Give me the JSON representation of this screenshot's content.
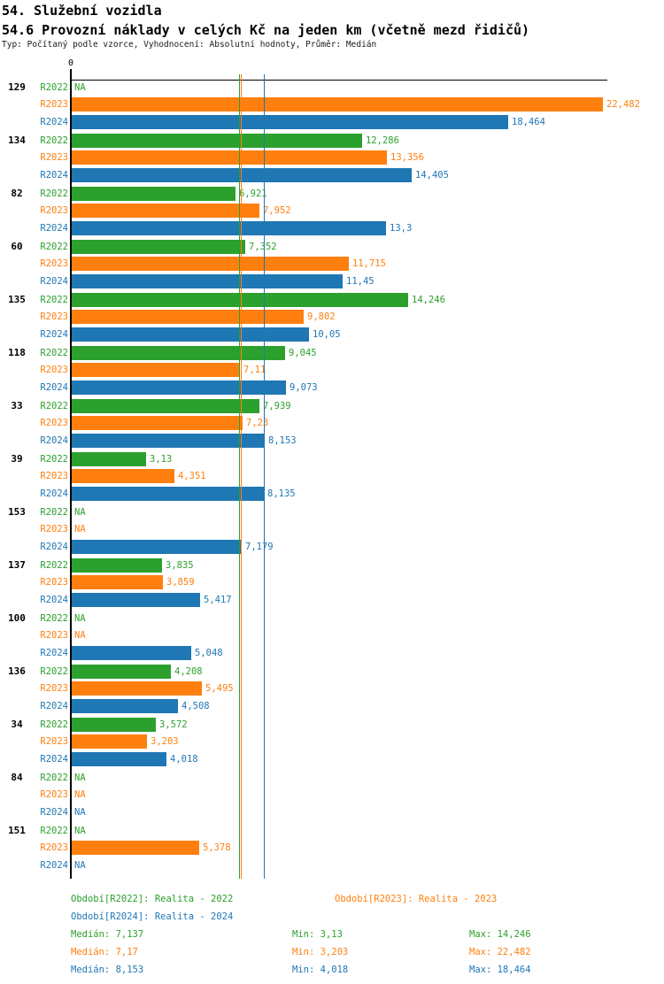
{
  "header": {
    "title1": "54. Služební vozidla",
    "title2": "54.6 Provozní náklady v celých Kč na jeden km (včetně mezd řidičů)",
    "meta": "Typ: Počítaný podle vzorce, Vyhodnocení: Absolutní hodnoty, Průměr: Medián"
  },
  "axis": {
    "zero_label": "0"
  },
  "chart_data": {
    "type": "bar",
    "orientation": "horizontal",
    "title": "54.6 Provozní náklady v celých Kč na jeden km (včetně mezd řidičů)",
    "xlim": [
      0,
      22.482
    ],
    "grid": false,
    "na_label": "NA",
    "series_colors": {
      "R2022": "#2ca02c",
      "R2023": "#ff7f0e",
      "R2024": "#1f77b4"
    },
    "categories": [
      "129",
      "134",
      "82",
      "60",
      "135",
      "118",
      "33",
      "39",
      "153",
      "137",
      "100",
      "136",
      "34",
      "84",
      "151"
    ],
    "series": [
      {
        "name": "R2022",
        "color": "#2ca02c",
        "values": [
          null,
          12.286,
          6.921,
          7.352,
          14.246,
          9.045,
          7.939,
          3.13,
          null,
          3.835,
          null,
          4.208,
          3.572,
          null,
          null
        ]
      },
      {
        "name": "R2023",
        "color": "#ff7f0e",
        "values": [
          22.482,
          13.356,
          7.952,
          11.715,
          9.802,
          7.11,
          7.23,
          4.351,
          null,
          3.859,
          null,
          5.495,
          3.203,
          null,
          5.378
        ]
      },
      {
        "name": "R2024",
        "color": "#1f77b4",
        "values": [
          18.464,
          14.405,
          13.3,
          11.45,
          10.05,
          9.073,
          8.153,
          8.135,
          7.179,
          5.417,
          5.048,
          4.508,
          4.018,
          null,
          null
        ]
      }
    ],
    "groups": [
      {
        "id": "129",
        "bars": [
          {
            "series": "R2022",
            "value": null,
            "label": "NA"
          },
          {
            "series": "R2023",
            "value": 22.482,
            "label": "22,482"
          },
          {
            "series": "R2024",
            "value": 18.464,
            "label": "18,464"
          }
        ]
      },
      {
        "id": "134",
        "bars": [
          {
            "series": "R2022",
            "value": 12.286,
            "label": "12,286"
          },
          {
            "series": "R2023",
            "value": 13.356,
            "label": "13,356"
          },
          {
            "series": "R2024",
            "value": 14.405,
            "label": "14,405"
          }
        ]
      },
      {
        "id": "82",
        "bars": [
          {
            "series": "R2022",
            "value": 6.921,
            "label": "6,921"
          },
          {
            "series": "R2023",
            "value": 7.952,
            "label": "7,952"
          },
          {
            "series": "R2024",
            "value": 13.3,
            "label": "13,3"
          }
        ]
      },
      {
        "id": "60",
        "bars": [
          {
            "series": "R2022",
            "value": 7.352,
            "label": "7,352"
          },
          {
            "series": "R2023",
            "value": 11.715,
            "label": "11,715"
          },
          {
            "series": "R2024",
            "value": 11.45,
            "label": "11,45"
          }
        ]
      },
      {
        "id": "135",
        "bars": [
          {
            "series": "R2022",
            "value": 14.246,
            "label": "14,246"
          },
          {
            "series": "R2023",
            "value": 9.802,
            "label": "9,802"
          },
          {
            "series": "R2024",
            "value": 10.05,
            "label": "10,05"
          }
        ]
      },
      {
        "id": "118",
        "bars": [
          {
            "series": "R2022",
            "value": 9.045,
            "label": "9,045"
          },
          {
            "series": "R2023",
            "value": 7.11,
            "label": "7,11"
          },
          {
            "series": "R2024",
            "value": 9.073,
            "label": "9,073"
          }
        ]
      },
      {
        "id": "33",
        "bars": [
          {
            "series": "R2022",
            "value": 7.939,
            "label": "7,939"
          },
          {
            "series": "R2023",
            "value": 7.23,
            "label": "7,23"
          },
          {
            "series": "R2024",
            "value": 8.153,
            "label": "8,153"
          }
        ]
      },
      {
        "id": "39",
        "bars": [
          {
            "series": "R2022",
            "value": 3.13,
            "label": "3,13"
          },
          {
            "series": "R2023",
            "value": 4.351,
            "label": "4,351"
          },
          {
            "series": "R2024",
            "value": 8.135,
            "label": "8,135"
          }
        ]
      },
      {
        "id": "153",
        "bars": [
          {
            "series": "R2022",
            "value": null,
            "label": "NA"
          },
          {
            "series": "R2023",
            "value": null,
            "label": "NA"
          },
          {
            "series": "R2024",
            "value": 7.179,
            "label": "7,179"
          }
        ]
      },
      {
        "id": "137",
        "bars": [
          {
            "series": "R2022",
            "value": 3.835,
            "label": "3,835"
          },
          {
            "series": "R2023",
            "value": 3.859,
            "label": "3,859"
          },
          {
            "series": "R2024",
            "value": 5.417,
            "label": "5,417"
          }
        ]
      },
      {
        "id": "100",
        "bars": [
          {
            "series": "R2022",
            "value": null,
            "label": "NA"
          },
          {
            "series": "R2023",
            "value": null,
            "label": "NA"
          },
          {
            "series": "R2024",
            "value": 5.048,
            "label": "5,048"
          }
        ]
      },
      {
        "id": "136",
        "bars": [
          {
            "series": "R2022",
            "value": 4.208,
            "label": "4,208"
          },
          {
            "series": "R2023",
            "value": 5.495,
            "label": "5,495"
          },
          {
            "series": "R2024",
            "value": 4.508,
            "label": "4,508"
          }
        ]
      },
      {
        "id": "34",
        "bars": [
          {
            "series": "R2022",
            "value": 3.572,
            "label": "3,572"
          },
          {
            "series": "R2023",
            "value": 3.203,
            "label": "3,203"
          },
          {
            "series": "R2024",
            "value": 4.018,
            "label": "4,018"
          }
        ]
      },
      {
        "id": "84",
        "bars": [
          {
            "series": "R2022",
            "value": null,
            "label": "NA"
          },
          {
            "series": "R2023",
            "value": null,
            "label": "NA"
          },
          {
            "series": "R2024",
            "value": null,
            "label": "NA"
          }
        ]
      },
      {
        "id": "151",
        "bars": [
          {
            "series": "R2022",
            "value": null,
            "label": "NA"
          },
          {
            "series": "R2023",
            "value": 5.378,
            "label": "5,378"
          },
          {
            "series": "R2024",
            "value": null,
            "label": "NA"
          }
        ]
      }
    ],
    "reference_lines": [
      {
        "series": "R2022",
        "value": 7.137,
        "color": "#2ca02c"
      },
      {
        "series": "R2023",
        "value": 7.17,
        "color": "#ff7f0e"
      },
      {
        "series": "R2024",
        "value": 8.153,
        "color": "#1f77b4"
      }
    ]
  },
  "legend": {
    "items": [
      {
        "label": "Období[R2022]: Realita - 2022",
        "color": "#2ca02c",
        "row": 0,
        "col": 0
      },
      {
        "label": "Období[R2023]: Realita - 2023",
        "color": "#ff7f0e",
        "row": 0,
        "col": 1
      },
      {
        "label": "Období[R2024]: Realita - 2024",
        "color": "#1f77b4",
        "row": 1,
        "col": 0
      }
    ],
    "stats": [
      {
        "color": "#2ca02c",
        "median": "Medián: 7,137",
        "min": "Min: 3,13",
        "max": "Max: 14,246"
      },
      {
        "color": "#ff7f0e",
        "median": "Medián: 7,17",
        "min": "Min: 3,203",
        "max": "Max: 22,482"
      },
      {
        "color": "#1f77b4",
        "median": "Medián: 8,153",
        "min": "Min: 4,018",
        "max": "Max: 18,464"
      }
    ]
  }
}
